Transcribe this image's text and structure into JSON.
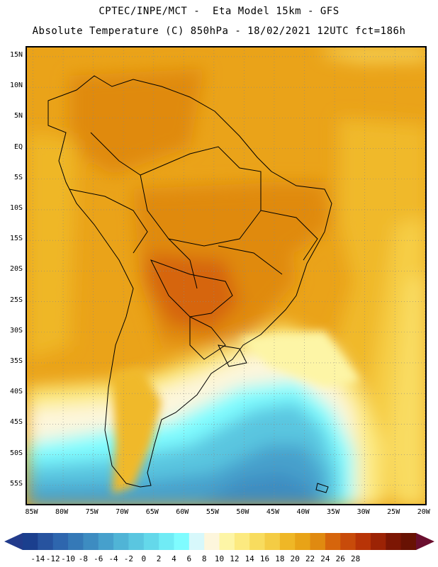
{
  "title": {
    "line1": "CPTEC/INPE/MCT -  Eta Model 15km - GFS",
    "line2": "Absolute Temperature (C) 850hPa - 18/02/2021 12UTC fct=186h"
  },
  "map": {
    "region": "South America",
    "variable": "Absolute Temperature",
    "units": "C",
    "level": "850hPa",
    "lon_range": [
      -86,
      -19.5
    ],
    "lat_range": [
      -58.5,
      16.5
    ],
    "lat_labels": [
      "15N",
      "10N",
      "5N",
      "EQ",
      "5S",
      "10S",
      "15S",
      "20S",
      "25S",
      "30S",
      "35S",
      "40S",
      "45S",
      "50S",
      "55S"
    ],
    "lat_values": [
      15,
      10,
      5,
      0,
      -5,
      -10,
      -15,
      -20,
      -25,
      -30,
      -35,
      -40,
      -45,
      -50,
      -55
    ],
    "lon_labels": [
      "85W",
      "80W",
      "75W",
      "70W",
      "65W",
      "60W",
      "55W",
      "50W",
      "45W",
      "40W",
      "35W",
      "30W",
      "25W",
      "20W"
    ],
    "lon_values": [
      -85,
      -80,
      -75,
      -70,
      -65,
      -60,
      -55,
      -50,
      -45,
      -40,
      -35,
      -30,
      -25,
      -20
    ]
  },
  "colorbar": {
    "labels": [
      "-14",
      "-12",
      "-10",
      "-8",
      "-6",
      "-4",
      "-2",
      "0",
      "2",
      "4",
      "6",
      "8",
      "10",
      "12",
      "14",
      "16",
      "18",
      "20",
      "22",
      "24",
      "26",
      "28"
    ],
    "colors": [
      "#1b3f8e",
      "#27539f",
      "#2e66ae",
      "#3579b7",
      "#3d8cc1",
      "#46a0cc",
      "#50b4d6",
      "#5ac6e0",
      "#64d8ea",
      "#70ebf5",
      "#7ffcff",
      "#d7f8fb",
      "#fdf6dc",
      "#fdf5a6",
      "#fcea80",
      "#f8dc5e",
      "#f4cc44",
      "#efb726",
      "#e8a317",
      "#e08a10",
      "#d6650c",
      "#c84b0a",
      "#b83407",
      "#9c2305",
      "#7c1604",
      "#681203"
    ],
    "left_arrow_color": "#223b8b",
    "right_arrow_color": "#6a0f2e"
  }
}
